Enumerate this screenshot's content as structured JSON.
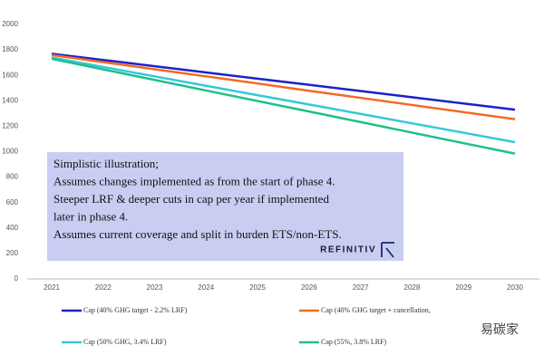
{
  "chart_data": {
    "type": "line",
    "categories": [
      "2021",
      "2022",
      "2023",
      "2024",
      "2025",
      "2026",
      "2027",
      "2028",
      "2029",
      "2030"
    ],
    "series": [
      {
        "name": "Cap (40% GHG target - 2.2% LRF)",
        "color": "#1a22c8",
        "values": [
          1770,
          1721,
          1672,
          1623,
          1574,
          1526,
          1477,
          1428,
          1379,
          1330
        ]
      },
      {
        "name": "Cap (40% GHG target + cancellation,",
        "color": "#f26a21",
        "values": [
          1760,
          1704,
          1648,
          1592,
          1536,
          1479,
          1423,
          1367,
          1311,
          1255
        ]
      },
      {
        "name": "Cap (50% GHG, 3.4% LRF)",
        "color": "#35c8d8",
        "values": [
          1740,
          1666,
          1592,
          1518,
          1444,
          1371,
          1297,
          1223,
          1149,
          1075
        ]
      },
      {
        "name": "Cap (55%, 3.8% LRF)",
        "color": "#1fbf8a",
        "values": [
          1730,
          1647,
          1564,
          1481,
          1398,
          1316,
          1233,
          1150,
          1067,
          985
        ]
      }
    ],
    "ylim": [
      0,
      2000
    ],
    "yticks": [
      0,
      200,
      400,
      600,
      800,
      1000,
      1200,
      1400,
      1600,
      1800,
      2000
    ],
    "grid": false,
    "annotation": {
      "lines": [
        "Simplistic illustration;",
        "Assumes changes implemented as from the start of phase 4.",
        "Steeper LRF & deeper cuts in cap per year if implemented",
        "later in phase 4.",
        "Assumes current coverage and split in burden ETS/non-ETS."
      ],
      "logo": "REFINITIV"
    },
    "watermark": "易碳家"
  }
}
